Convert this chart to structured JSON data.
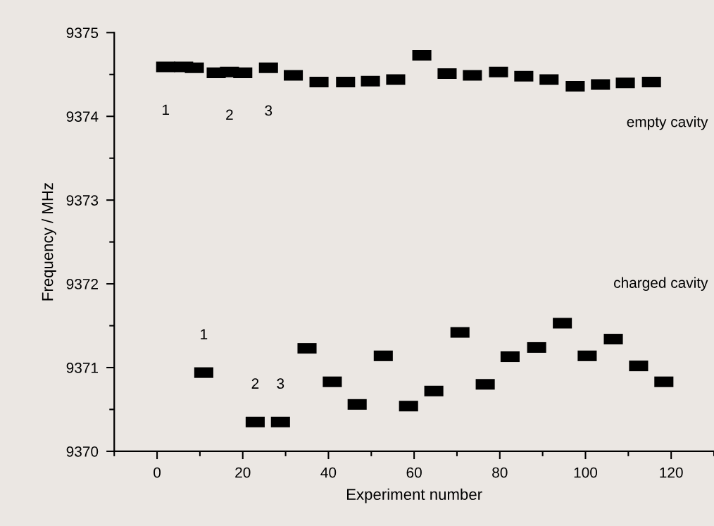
{
  "chart_data": {
    "type": "scatter",
    "xlabel": "Experiment number",
    "ylabel": "Frequency / MHz",
    "xlim": [
      -10,
      130
    ],
    "ylim": [
      9370,
      9375
    ],
    "xticks": [
      {
        "value": -10,
        "label": null
      },
      0,
      {
        "value": 10,
        "label": null
      },
      20,
      {
        "value": 30,
        "label": null
      },
      40,
      {
        "value": 50,
        "label": null
      },
      60,
      {
        "value": 70,
        "label": null
      },
      80,
      {
        "value": 90,
        "label": null
      },
      100,
      {
        "value": 110,
        "label": null
      },
      120,
      {
        "value": 130,
        "label": null
      }
    ],
    "yticks": [
      9370,
      {
        "value": 9370.5,
        "label": null
      },
      9371,
      {
        "value": 9371.5,
        "label": null
      },
      9372,
      {
        "value": 9372.5,
        "label": null
      },
      9373,
      {
        "value": 9373.5,
        "label": null
      },
      9374,
      {
        "value": 9374.5,
        "label": null
      },
      9375
    ],
    "marker": "square",
    "grid": false,
    "legend": false,
    "series": [
      {
        "name": "empty cavity",
        "color": "#000000",
        "x": [
          2.0,
          6.2,
          8.7,
          13.8,
          16.9,
          20.0,
          26.0,
          31.8,
          37.8,
          44.0,
          49.8,
          55.7,
          61.8,
          67.7,
          73.6,
          79.7,
          85.6,
          91.5,
          97.6,
          103.5,
          109.3,
          115.4
        ],
        "values": [
          9374.59,
          9374.59,
          9374.58,
          9374.52,
          9374.53,
          9374.52,
          9374.58,
          9374.49,
          9374.41,
          9374.41,
          9374.42,
          9374.44,
          9374.73,
          9374.51,
          9374.49,
          9374.53,
          9374.48,
          9374.44,
          9374.36,
          9374.38,
          9374.4,
          9374.41
        ]
      },
      {
        "name": "charged cavity",
        "color": "#000000",
        "x": [
          10.9,
          22.9,
          28.8,
          35.0,
          40.9,
          46.7,
          52.8,
          58.7,
          64.6,
          70.7,
          76.6,
          82.4,
          88.6,
          94.6,
          100.4,
          106.5,
          112.4,
          118.3
        ],
        "values": [
          9370.94,
          9370.35,
          9370.35,
          9371.23,
          9370.83,
          9370.56,
          9371.14,
          9370.54,
          9370.72,
          9371.42,
          9370.8,
          9371.13,
          9371.24,
          9371.53,
          9371.14,
          9371.34,
          9371.02,
          9370.83
        ]
      }
    ],
    "annotations": [
      {
        "text": "1",
        "x": 2.0,
        "y": 9374.59
      },
      {
        "text": "2",
        "x": 16.9,
        "y": 9374.53
      },
      {
        "text": "3",
        "x": 26.0,
        "y": 9374.58
      },
      {
        "text": "1",
        "x": 10.9,
        "y": 9370.94
      },
      {
        "text": "2",
        "x": 22.9,
        "y": 9370.35
      },
      {
        "text": "3",
        "x": 28.8,
        "y": 9370.35
      }
    ]
  }
}
